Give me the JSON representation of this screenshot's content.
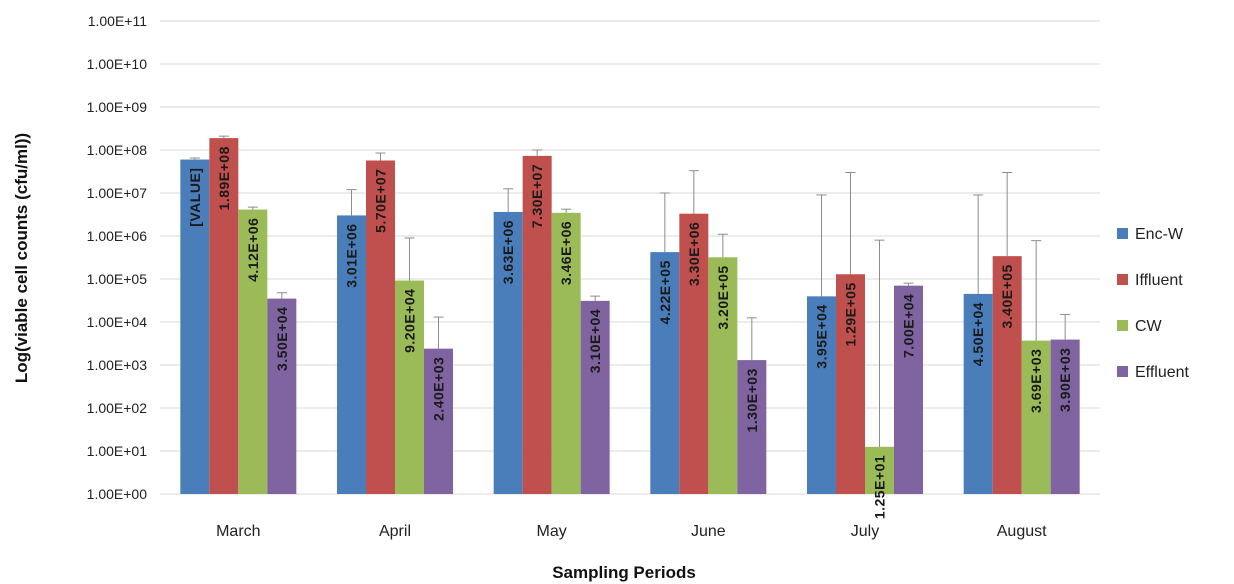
{
  "chart_data": {
    "type": "bar",
    "title": "",
    "xlabel": "Sampling Periods",
    "ylabel": "Log(viable cell counts (cfu/ml))",
    "y_scale": "log",
    "ylim": [
      1,
      100000000000
    ],
    "y_ticks": [
      "1.00E+00",
      "1.00E+01",
      "1.00E+02",
      "1.00E+03",
      "1.00E+04",
      "1.00E+05",
      "1.00E+06",
      "1.00E+07",
      "1.00E+08",
      "1.00E+09",
      "1.00E+10",
      "1.00E+11"
    ],
    "grid": true,
    "legend_position": "right",
    "categories": [
      "March",
      "April",
      "May",
      "June",
      "July",
      "August"
    ],
    "series": [
      {
        "name": "Enc-W",
        "color": "#4a7ebb",
        "values": [
          60000000,
          3010000,
          3630000,
          422000,
          39500,
          45000
        ],
        "error_upper": [
          65000000,
          12000000,
          12500000,
          10000000,
          9000000,
          9000000
        ],
        "labels": [
          "[VALUE]",
          "3.01E+06",
          "3.63E+06",
          "4.22E+05",
          "3.95E+04",
          "4.50E+04"
        ]
      },
      {
        "name": "Iffluent",
        "color": "#c0504d",
        "values": [
          189000000,
          57000000,
          73000000,
          3300000,
          129000,
          340000
        ],
        "error_upper": [
          210000000,
          85000000,
          100000000,
          33000000,
          30000000,
          30000000
        ],
        "labels": [
          "1.89E+08",
          "5.70E+07",
          "7.30E+07",
          "3.30E+06",
          "1.29E+05",
          "3.40E+05"
        ]
      },
      {
        "name": "CW",
        "color": "#9bbb59",
        "values": [
          4120000,
          92000,
          3460000,
          320000,
          12.5,
          3690
        ],
        "error_upper": [
          4700000,
          900000,
          4200000,
          1100000,
          800000,
          780000
        ],
        "labels": [
          "4.12E+06",
          "9.20E+04",
          "3.46E+06",
          "3.20E+05",
          "1.25E+01",
          "3.69E+03"
        ]
      },
      {
        "name": "Effluent",
        "color": "#8064a2",
        "values": [
          35000,
          2400,
          31000,
          1300,
          70000,
          3900
        ],
        "error_upper": [
          48000,
          13000,
          40000,
          12500,
          80000,
          15000
        ],
        "labels": [
          "3.50E+04",
          "2.40E+03",
          "3.10E+04",
          "1.30E+03",
          "7.00E+04",
          "3.90E+03"
        ]
      }
    ]
  }
}
